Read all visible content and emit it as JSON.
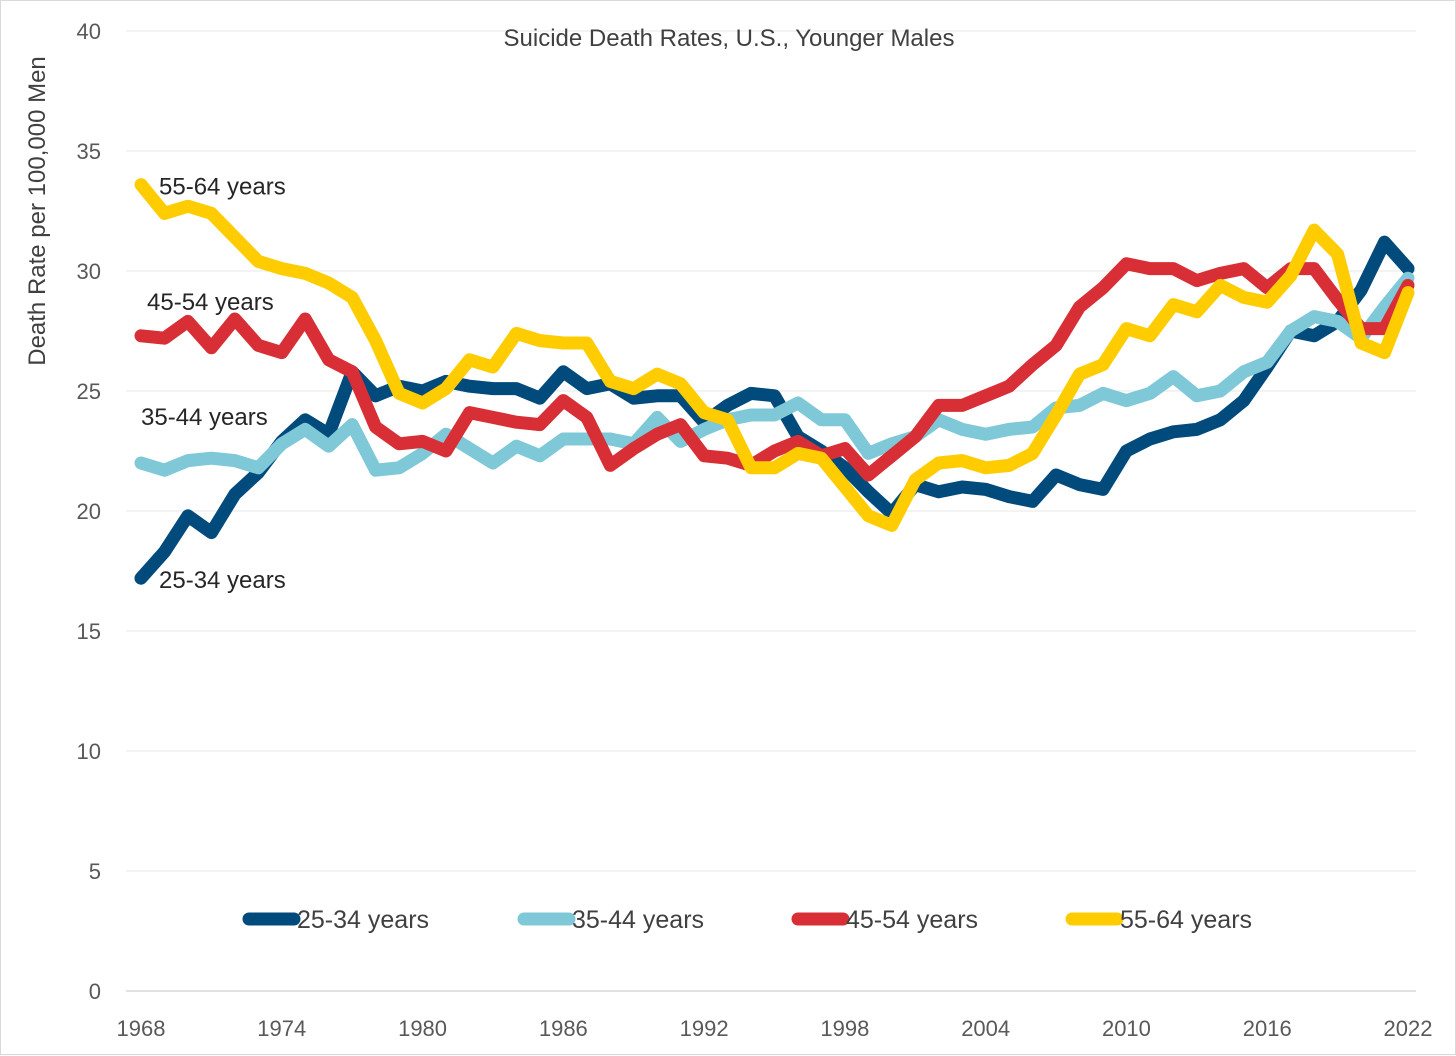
{
  "chart_data": {
    "type": "line",
    "title": "Suicide Death Rates, U.S., Younger Males",
    "ylabel": "Death Rate per 100,000 Men",
    "xlabel": "",
    "xlim": [
      1968,
      2022
    ],
    "ylim": [
      0,
      40
    ],
    "x_ticks": [
      "1968",
      "1974",
      "1980",
      "1986",
      "1992",
      "1998",
      "2004",
      "2010",
      "2016",
      "2022"
    ],
    "y_ticks": [
      "0",
      "5",
      "10",
      "15",
      "20",
      "25",
      "30",
      "35",
      "40"
    ],
    "grid": "horizontal",
    "legend_position": "bottom",
    "x": [
      1968,
      1969,
      1970,
      1971,
      1972,
      1973,
      1974,
      1975,
      1976,
      1977,
      1978,
      1979,
      1980,
      1981,
      1982,
      1983,
      1984,
      1985,
      1986,
      1987,
      1988,
      1989,
      1990,
      1991,
      1992,
      1993,
      1994,
      1995,
      1996,
      1997,
      1998,
      1999,
      2000,
      2001,
      2002,
      2003,
      2004,
      2005,
      2006,
      2007,
      2008,
      2009,
      2010,
      2011,
      2012,
      2013,
      2014,
      2015,
      2016,
      2017,
      2018,
      2019,
      2020,
      2021,
      2022
    ],
    "series": [
      {
        "name": "25-34 years",
        "color": "#004a7c",
        "values": [
          17.2,
          18.3,
          19.8,
          19.1,
          20.7,
          21.6,
          22.9,
          23.8,
          23.2,
          25.8,
          24.8,
          25.2,
          25.0,
          25.4,
          25.2,
          25.1,
          25.1,
          24.7,
          25.8,
          25.1,
          25.3,
          24.7,
          24.8,
          24.8,
          23.7,
          24.4,
          24.9,
          24.8,
          23.1,
          22.5,
          21.8,
          20.8,
          19.9,
          21.1,
          20.8,
          21.0,
          20.9,
          20.6,
          20.4,
          21.5,
          21.1,
          20.9,
          22.5,
          23.0,
          23.3,
          23.4,
          23.8,
          24.6,
          26.0,
          27.5,
          27.3,
          27.9,
          29.2,
          31.2,
          30.1
        ]
      },
      {
        "name": "35-44 years",
        "color": "#7ec8d8",
        "values": [
          22.0,
          21.7,
          22.1,
          22.2,
          22.1,
          21.8,
          22.8,
          23.4,
          22.7,
          23.6,
          21.7,
          21.8,
          22.4,
          23.2,
          22.6,
          22.0,
          22.7,
          22.3,
          23.0,
          23.0,
          23.0,
          22.8,
          23.9,
          22.9,
          23.4,
          23.8,
          24.0,
          24.0,
          24.5,
          23.8,
          23.8,
          22.4,
          22.8,
          23.1,
          23.8,
          23.4,
          23.2,
          23.4,
          23.5,
          24.3,
          24.4,
          24.9,
          24.6,
          24.9,
          25.6,
          24.8,
          25.0,
          25.8,
          26.2,
          27.5,
          28.1,
          27.9,
          27.2,
          28.5,
          29.7
        ]
      },
      {
        "name": "45-54 years",
        "color": "#d82f36",
        "values": [
          27.3,
          27.2,
          27.9,
          26.8,
          28.0,
          26.9,
          26.6,
          28.0,
          26.3,
          25.8,
          23.5,
          22.8,
          22.9,
          22.5,
          24.1,
          23.9,
          23.7,
          23.6,
          24.6,
          23.9,
          21.9,
          22.6,
          23.2,
          23.6,
          22.3,
          22.2,
          21.9,
          22.5,
          22.9,
          22.3,
          22.6,
          21.5,
          22.3,
          23.1,
          24.4,
          24.4,
          24.8,
          25.2,
          26.1,
          26.9,
          28.5,
          29.3,
          30.3,
          30.1,
          30.1,
          29.6,
          29.9,
          30.1,
          29.3,
          30.1,
          30.1,
          28.8,
          27.6,
          27.6,
          29.4
        ]
      },
      {
        "name": "55-64 years",
        "color": "#ffcc00",
        "values": [
          33.6,
          32.4,
          32.7,
          32.4,
          31.4,
          30.4,
          30.1,
          29.9,
          29.5,
          28.9,
          27.1,
          24.9,
          24.5,
          25.1,
          26.3,
          26.0,
          27.4,
          27.1,
          27.0,
          27.0,
          25.4,
          25.1,
          25.7,
          25.3,
          24.1,
          23.8,
          21.8,
          21.8,
          22.4,
          22.2,
          21.0,
          19.8,
          19.4,
          21.3,
          22.0,
          22.1,
          21.8,
          21.9,
          22.4,
          24.0,
          25.7,
          26.1,
          27.6,
          27.3,
          28.6,
          28.3,
          29.4,
          28.9,
          28.7,
          29.8,
          31.7,
          30.7,
          27.0,
          26.6,
          29.1
        ]
      }
    ],
    "inline_labels": [
      {
        "series": 3,
        "text": "55-64 years",
        "x": 1968,
        "y": 33.6
      },
      {
        "series": 2,
        "text": "45-54 years",
        "x": 1968,
        "y": 27.3
      },
      {
        "series": 1,
        "text": "35-44 years",
        "x": 1968,
        "y": 22.0
      },
      {
        "series": 0,
        "text": "25-34 years",
        "x": 1968,
        "y": 17.2
      }
    ]
  }
}
